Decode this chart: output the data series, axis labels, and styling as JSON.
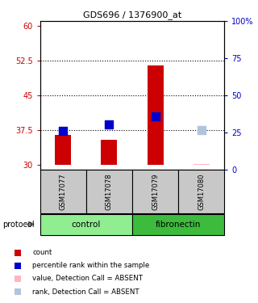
{
  "title": "GDS696 / 1376900_at",
  "samples": [
    "GSM17077",
    "GSM17078",
    "GSM17079",
    "GSM17080"
  ],
  "groups": [
    "control",
    "control",
    "fibronectin",
    "fibronectin"
  ],
  "group_colors": {
    "control": "#90EE90",
    "fibronectin": "#3DBB3D"
  },
  "bar_base": 30,
  "bar_tops": [
    36.5,
    35.5,
    51.5,
    30.3
  ],
  "rank_values": [
    37.3,
    38.7,
    40.5,
    37.5
  ],
  "absent_flags": [
    false,
    false,
    false,
    true
  ],
  "ylim_left": [
    29,
    61
  ],
  "ylim_right": [
    0,
    100
  ],
  "yticks_left": [
    30,
    37.5,
    45,
    52.5,
    60
  ],
  "ytick_labels_left": [
    "30",
    "37.5",
    "45",
    "52.5",
    "60"
  ],
  "yticks_right": [
    0,
    25,
    50,
    75,
    100
  ],
  "ytick_labels_right": [
    "0",
    "25",
    "50",
    "75",
    "100%"
  ],
  "hlines": [
    37.5,
    45,
    52.5
  ],
  "bar_color": "#CC0000",
  "rank_color": "#0000CC",
  "absent_bar_color": "#FFB6C1",
  "absent_rank_color": "#B0C4DE",
  "bar_width": 0.35,
  "rank_marker_size": 45,
  "chart_bg": "#FFFFFF",
  "plot_bg": "#FFFFFF",
  "group_label": "protocol",
  "legend_items": [
    {
      "label": "count",
      "color": "#CC0000"
    },
    {
      "label": "percentile rank within the sample",
      "color": "#0000CC"
    },
    {
      "label": "value, Detection Call = ABSENT",
      "color": "#FFB6C1"
    },
    {
      "label": "rank, Detection Call = ABSENT",
      "color": "#B0C4DE"
    }
  ]
}
